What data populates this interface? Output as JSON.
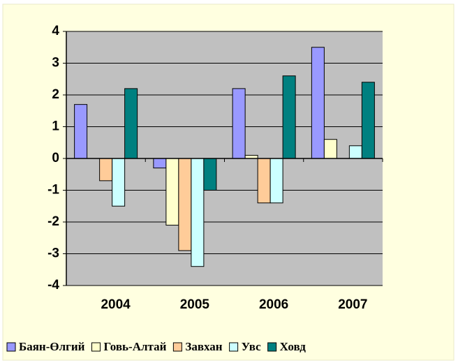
{
  "chart_data": {
    "type": "bar",
    "categories": [
      "2004",
      "2005",
      "2006",
      "2007"
    ],
    "series": [
      {
        "name": "Баян-Өлгий",
        "color": "#9999ff",
        "values": [
          1.7,
          -0.3,
          2.2,
          3.5
        ]
      },
      {
        "name": "Говь-Алтай",
        "color": "#ffffcc",
        "values": [
          0,
          -2.1,
          0.1,
          0.6
        ]
      },
      {
        "name": "Завхан",
        "color": "#ffcc99",
        "values": [
          -0.7,
          -2.9,
          -1.4,
          0
        ]
      },
      {
        "name": "Увс",
        "color": "#ccffff",
        "values": [
          -1.5,
          -3.4,
          -1.4,
          0.4
        ]
      },
      {
        "name": "Ховд",
        "color": "#008080",
        "values": [
          2.2,
          -1.0,
          2.6,
          2.4
        ]
      }
    ],
    "ylim": [
      -4,
      4
    ],
    "yticks": [
      -4,
      -3,
      -2,
      -1,
      0,
      1,
      2,
      3,
      4
    ],
    "grid": true,
    "plot_background": "#c0c0c0",
    "legend": "bottom"
  }
}
